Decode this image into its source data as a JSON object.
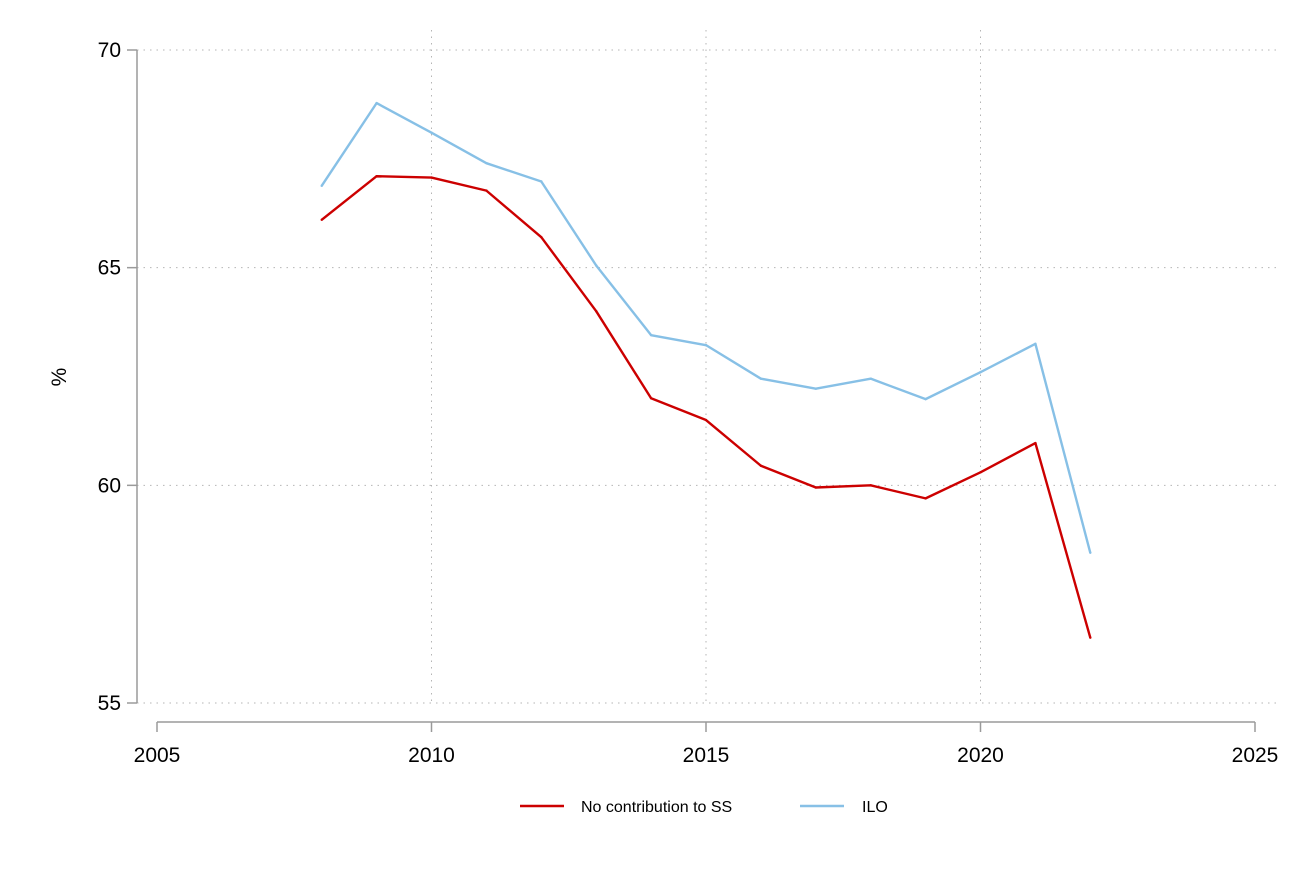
{
  "chart_data": {
    "type": "line",
    "title": "",
    "xlabel": "",
    "ylabel": "%",
    "xlim": [
      2005,
      2025
    ],
    "ylim": [
      55,
      70
    ],
    "x_ticks": [
      "2005",
      "2010",
      "2015",
      "2020",
      "2025"
    ],
    "y_ticks": [
      "55",
      "60",
      "65",
      "70"
    ],
    "grid": true,
    "legend_position": "bottom",
    "x": [
      2008,
      2009,
      2010,
      2011,
      2012,
      2013,
      2014,
      2015,
      2016,
      2017,
      2018,
      2019,
      2020,
      2021,
      2022
    ],
    "series": [
      {
        "name": "No contribution to SS",
        "color": "#cc0000",
        "values": [
          66.1,
          67.1,
          67.07,
          66.77,
          65.7,
          64.0,
          62.0,
          61.5,
          60.45,
          59.95,
          60.0,
          59.7,
          60.3,
          60.97,
          56.5
        ]
      },
      {
        "name": "ILO",
        "color": "#87c0e6",
        "values": [
          66.88,
          68.78,
          68.1,
          67.4,
          66.98,
          65.05,
          63.45,
          63.22,
          62.45,
          62.22,
          62.45,
          61.98,
          62.6,
          63.25,
          58.45
        ]
      }
    ]
  }
}
